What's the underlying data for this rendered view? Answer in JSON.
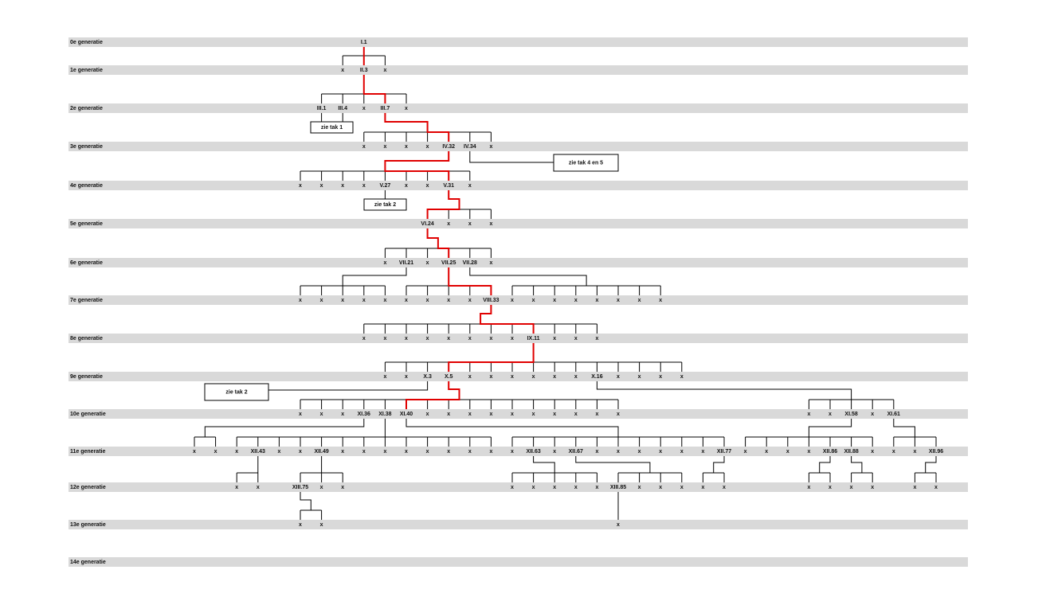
{
  "generations": [
    {
      "label": "0e generatie",
      "nodes": [
        "I.1"
      ]
    },
    {
      "label": "1e generatie",
      "nodes": [
        "x",
        "II.3",
        "x"
      ]
    },
    {
      "label": "2e generatie",
      "nodes": [
        "III.1",
        "III.4",
        "x",
        "III.7",
        "x"
      ]
    },
    {
      "label": "3e generatie",
      "nodes": [
        "x",
        "x",
        "x",
        "x",
        "IV.32",
        "IV.34",
        "x"
      ]
    },
    {
      "label": "4e generatie",
      "nodes": [
        "x",
        "x",
        "x",
        "x",
        "V.27",
        "x",
        "x",
        "V.31",
        "x"
      ]
    },
    {
      "label": "5e generatie",
      "nodes": [
        "VI.24",
        "x",
        "x",
        "x"
      ]
    },
    {
      "label": "6e generatie",
      "nodes": [
        "x",
        "VII.21",
        "x",
        "VII.25",
        "VII.28",
        "x"
      ]
    },
    {
      "label": "7e generatie",
      "nodes": [
        "x",
        "x",
        "x",
        "x",
        "x",
        "x",
        "x",
        "x",
        "x",
        "VIII.33",
        "x",
        "x",
        "x",
        "x",
        "x",
        "x",
        "x",
        "x"
      ]
    },
    {
      "label": "8e generatie",
      "nodes": [
        "x",
        "x",
        "x",
        "x",
        "x",
        "x",
        "x",
        "x",
        "IX.11",
        "x",
        "x",
        "x"
      ]
    },
    {
      "label": "9e generatie",
      "nodes": [
        "x",
        "x",
        "X.3",
        "X.5",
        "x",
        "x",
        "x",
        "x",
        "x",
        "x",
        "X.16",
        "x",
        "x",
        "x",
        "x"
      ]
    },
    {
      "label": "10e generatie",
      "nodes": [
        "x",
        "x",
        "x",
        "XI.36",
        "XI.38",
        "XI.40",
        "x",
        "x",
        "x",
        "x",
        "x",
        "x",
        "x",
        "x",
        "x",
        "x",
        "x",
        "x",
        "XI.58",
        "x",
        "XI.61"
      ]
    },
    {
      "label": "11e generatie",
      "nodes": [
        "x",
        "x",
        "x",
        "XII.43",
        "x",
        "x",
        "XII.49",
        "x",
        "x",
        "x",
        "x",
        "x",
        "x",
        "x",
        "x",
        "x",
        "XII.63",
        "x",
        "XII.67",
        "x",
        "x",
        "x",
        "x",
        "x",
        "x",
        "XII.77",
        "x",
        "x",
        "x",
        "x",
        "XII.86",
        "XII.88",
        "x",
        "x",
        "x",
        "XII.96"
      ]
    },
    {
      "label": "12e generatie",
      "nodes": [
        "x",
        "x",
        "XIII.75",
        "x",
        "x",
        "x",
        "x",
        "x",
        "x",
        "x",
        "XIII.85",
        "x",
        "x",
        "x",
        "x",
        "x",
        "x",
        "x",
        "x",
        "x",
        "x",
        "x"
      ]
    },
    {
      "label": "13e generatie",
      "nodes": [
        "x",
        "x",
        "x"
      ]
    },
    {
      "label": "14e generatie",
      "nodes": []
    }
  ],
  "notes": [
    "zie tak 1",
    "zie tak 4 en 5",
    "zie tak 2",
    "zie tak 2"
  ]
}
